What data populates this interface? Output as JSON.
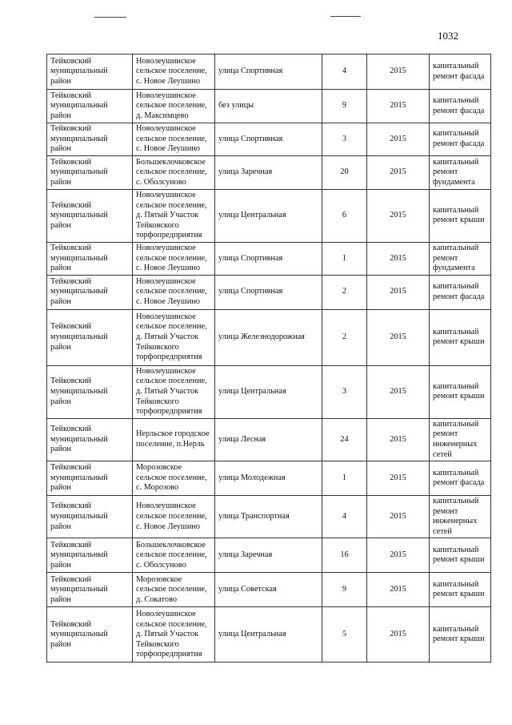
{
  "page_number": "1032",
  "rows": [
    {
      "district": "Тейковский муниципальный район",
      "settlement": "Новолеушинское сельское поселение, с. Новое Леушино",
      "street": "улица Спортивная",
      "house": "4",
      "year": "2015",
      "work": "капитальный ремонт фасада"
    },
    {
      "district": "Тейковский муниципальный район",
      "settlement": "Новолеушинское сельское поселение, д. Максимцево",
      "street": "без улицы",
      "house": "9",
      "year": "2015",
      "work": "капитальный ремонт фасада"
    },
    {
      "district": "Тейковский муниципальный район",
      "settlement": "Новолеушинское сельское поселение, с. Новое Леушино",
      "street": "улица Спортивная",
      "house": "3",
      "year": "2015",
      "work": "капитальный ремонт фасада"
    },
    {
      "district": "Тейковский муниципальный район",
      "settlement": "Большеклочковское сельское поселение, с. Оболсуново",
      "street": "улица Заречная",
      "house": "20",
      "year": "2015",
      "work": "капитальный ремонт фундамента"
    },
    {
      "district": "Тейковский муниципальный район",
      "settlement": "Новолеушинское сельское поселение, д. Пятый Участок Тейковского торфопредприятия",
      "street": "улица Центральная",
      "house": "6",
      "year": "2015",
      "work": "капитальный ремонт крыши"
    },
    {
      "district": "Тейковский муниципальный район",
      "settlement": "Новолеушинское сельское поселение, с. Новое Леушино",
      "street": "улица Спортивная",
      "house": "1",
      "year": "2015",
      "work": "капитальный ремонт фундамента"
    },
    {
      "district": "Тейковский муниципальный район",
      "settlement": "Новолеушинское сельское поселение, с. Новое Леушино",
      "street": "улица Спортивная",
      "house": "2",
      "year": "2015",
      "work": "капитальный ремонт фасада"
    },
    {
      "district": "Тейковский муниципальный район",
      "settlement": "Новолеушинское сельское поселение, д. Пятый Участок Тейковского торфопредприятия",
      "street": "улица Железнодорожная",
      "house": "2",
      "year": "2015",
      "work": "капитальный ремонт крыши"
    },
    {
      "district": "Тейковский муниципальный район",
      "settlement": "Новолеушинское сельское поселение, д. Пятый Участок Тейковского торфопредприятия",
      "street": "улица Центральная",
      "house": "3",
      "year": "2015",
      "work": "капитальный ремонт крыши"
    },
    {
      "district": "Тейковский муниципальный район",
      "settlement": "Нерльское городское поселение, п.Нерль",
      "street": "улица Лесная",
      "house": "24",
      "year": "2015",
      "work": "капитальный ремонт инженерных сетей"
    },
    {
      "district": "Тейковский муниципальный район",
      "settlement": "Морозовское сельское поселение, с. Морозово",
      "street": "улица Молодежная",
      "house": "1",
      "year": "2015",
      "work": "капитальный ремонт фасада"
    },
    {
      "district": "Тейковский муниципальный район",
      "settlement": "Новолеушинское сельское поселение, с. Новое Леушино",
      "street": "улица Транспортная",
      "house": "4",
      "year": "2015",
      "work": "капитальный ремонт инженерных сетей"
    },
    {
      "district": "Тейковский муниципальный район",
      "settlement": "Большеклочковское сельское поселение, с. Оболсуново",
      "street": "улица Заречная",
      "house": "16",
      "year": "2015",
      "work": "капитальный ремонт крыши"
    },
    {
      "district": "Тейковский муниципальный район",
      "settlement": "Морозовское сельское поселение, д. Сокатово",
      "street": "улица  Советская",
      "house": "9",
      "year": "2015",
      "work": "капитальный ремонт крыши"
    },
    {
      "district": "Тейковский муниципальный район",
      "settlement": "Новолеушинское сельское поселение, д. Пятый Участок Тейковского торфопредприятия",
      "street": "улица Центральная",
      "house": "5",
      "year": "2015",
      "work": "капитальный ремонт крыши"
    }
  ]
}
